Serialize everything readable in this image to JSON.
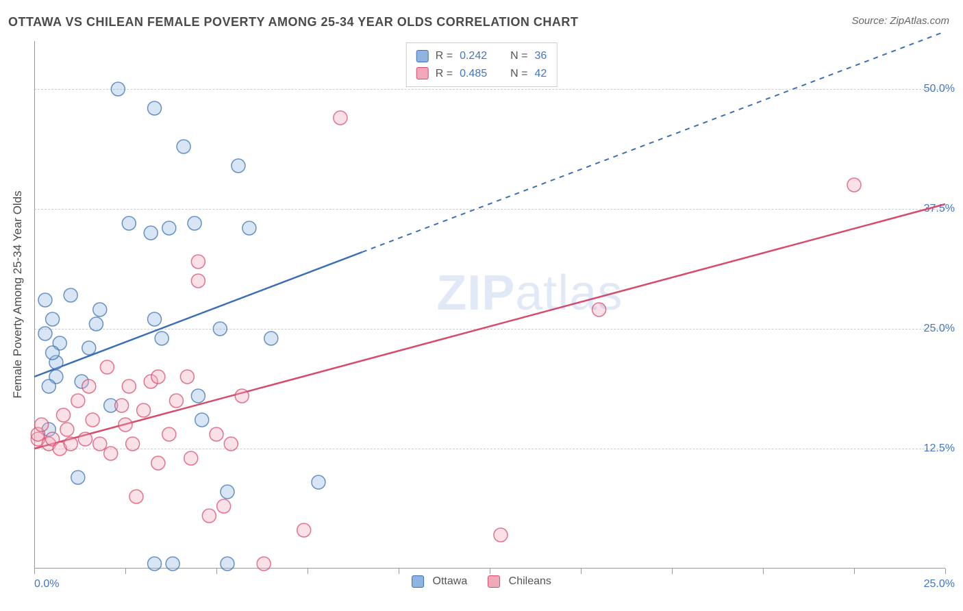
{
  "title": "OTTAWA VS CHILEAN FEMALE POVERTY AMONG 25-34 YEAR OLDS CORRELATION CHART",
  "source": "Source: ZipAtlas.com",
  "y_axis_label": "Female Poverty Among 25-34 Year Olds",
  "watermark_bold": "ZIP",
  "watermark_thin": "atlas",
  "chart": {
    "type": "scatter_with_regression",
    "background_color": "#ffffff",
    "grid_color": "#cccccc",
    "axis_color": "#999999",
    "text_color": "#4a4a4a",
    "value_color": "#4275c4",
    "xlim": [
      0.0,
      25.0
    ],
    "ylim": [
      0.0,
      55.0
    ],
    "x_ticks_minor": [
      0,
      2.5,
      5,
      7.5,
      10,
      12.5,
      15,
      17.5,
      20,
      22.5,
      25
    ],
    "x_tick_labels": {
      "0": "0.0%",
      "25": "25.0%"
    },
    "y_ticks": [
      12.5,
      25.0,
      37.5,
      50.0
    ],
    "y_tick_suffix": "%",
    "marker_radius": 10,
    "marker_fill_opacity": 0.35,
    "marker_stroke_width": 1.5,
    "line_width_solid": 2.5,
    "line_width_dash": 2,
    "series": [
      {
        "name": "Ottawa",
        "color_stroke": "#3b6fb5",
        "color_fill": "#8fb4e0",
        "regression": {
          "x0": 0,
          "y0": 20,
          "x_solid_end": 9,
          "y_solid_end": 33,
          "x_dash_end": 25,
          "y_dash_end": 56
        },
        "r": 0.242,
        "n": 36,
        "points": [
          [
            0.3,
            28
          ],
          [
            0.6,
            20
          ],
          [
            0.6,
            21.5
          ],
          [
            0.4,
            19
          ],
          [
            0.4,
            14.5
          ],
          [
            0.7,
            23.5
          ],
          [
            0.3,
            24.5
          ],
          [
            0.5,
            26
          ],
          [
            1.0,
            28.5
          ],
          [
            1.3,
            19.5
          ],
          [
            1.5,
            23
          ],
          [
            1.7,
            25.5
          ],
          [
            2.3,
            50
          ],
          [
            2.6,
            36
          ],
          [
            2.1,
            17
          ],
          [
            3.2,
            35
          ],
          [
            3.3,
            26
          ],
          [
            3.3,
            0.5
          ],
          [
            3.5,
            24
          ],
          [
            3.3,
            48
          ],
          [
            3.7,
            35.5
          ],
          [
            1.8,
            27
          ],
          [
            4.1,
            44
          ],
          [
            4.4,
            36
          ],
          [
            4.5,
            18
          ],
          [
            4.6,
            15.5
          ],
          [
            5.1,
            25
          ],
          [
            5.3,
            8
          ],
          [
            5.6,
            42
          ],
          [
            5.9,
            35.5
          ],
          [
            6.5,
            24
          ],
          [
            7.8,
            9
          ],
          [
            1.2,
            9.5
          ],
          [
            3.8,
            0.5
          ],
          [
            0.5,
            22.5
          ],
          [
            5.3,
            0.5
          ]
        ]
      },
      {
        "name": "Chileans",
        "color_stroke": "#d94a6a",
        "color_fill": "#f2a8bb",
        "regression": {
          "x0": 0,
          "y0": 12.5,
          "x_solid_end": 25,
          "y_solid_end": 38,
          "x_dash_end": 25,
          "y_dash_end": 38
        },
        "r": 0.485,
        "n": 42,
        "points": [
          [
            0.1,
            13.5
          ],
          [
            0.1,
            14
          ],
          [
            0.2,
            15
          ],
          [
            0.4,
            13
          ],
          [
            0.5,
            13.5
          ],
          [
            0.7,
            12.5
          ],
          [
            0.8,
            16
          ],
          [
            1.0,
            13
          ],
          [
            0.9,
            14.5
          ],
          [
            1.2,
            17.5
          ],
          [
            1.4,
            13.5
          ],
          [
            1.5,
            19
          ],
          [
            1.6,
            15.5
          ],
          [
            1.8,
            13
          ],
          [
            2.0,
            21
          ],
          [
            2.1,
            12
          ],
          [
            2.4,
            17
          ],
          [
            2.5,
            15
          ],
          [
            2.6,
            19
          ],
          [
            2.8,
            7.5
          ],
          [
            2.7,
            13
          ],
          [
            3.0,
            16.5
          ],
          [
            3.2,
            19.5
          ],
          [
            3.4,
            11
          ],
          [
            3.4,
            20
          ],
          [
            3.7,
            14
          ],
          [
            3.9,
            17.5
          ],
          [
            4.2,
            20
          ],
          [
            4.3,
            11.5
          ],
          [
            4.5,
            32
          ],
          [
            4.5,
            30
          ],
          [
            4.8,
            5.5
          ],
          [
            5.0,
            14
          ],
          [
            5.2,
            6.5
          ],
          [
            5.4,
            13
          ],
          [
            5.7,
            18
          ],
          [
            6.3,
            0.5
          ],
          [
            7.4,
            4
          ],
          [
            8.4,
            47
          ],
          [
            12.8,
            3.5
          ],
          [
            15.5,
            27
          ],
          [
            22.5,
            40
          ]
        ]
      }
    ],
    "legend_top": [
      {
        "series": 0,
        "r_label": "R = ",
        "n_label": "N = "
      },
      {
        "series": 1,
        "r_label": "R = ",
        "n_label": "N = "
      }
    ],
    "legend_bottom": [
      {
        "series": 0
      },
      {
        "series": 1
      }
    ]
  }
}
